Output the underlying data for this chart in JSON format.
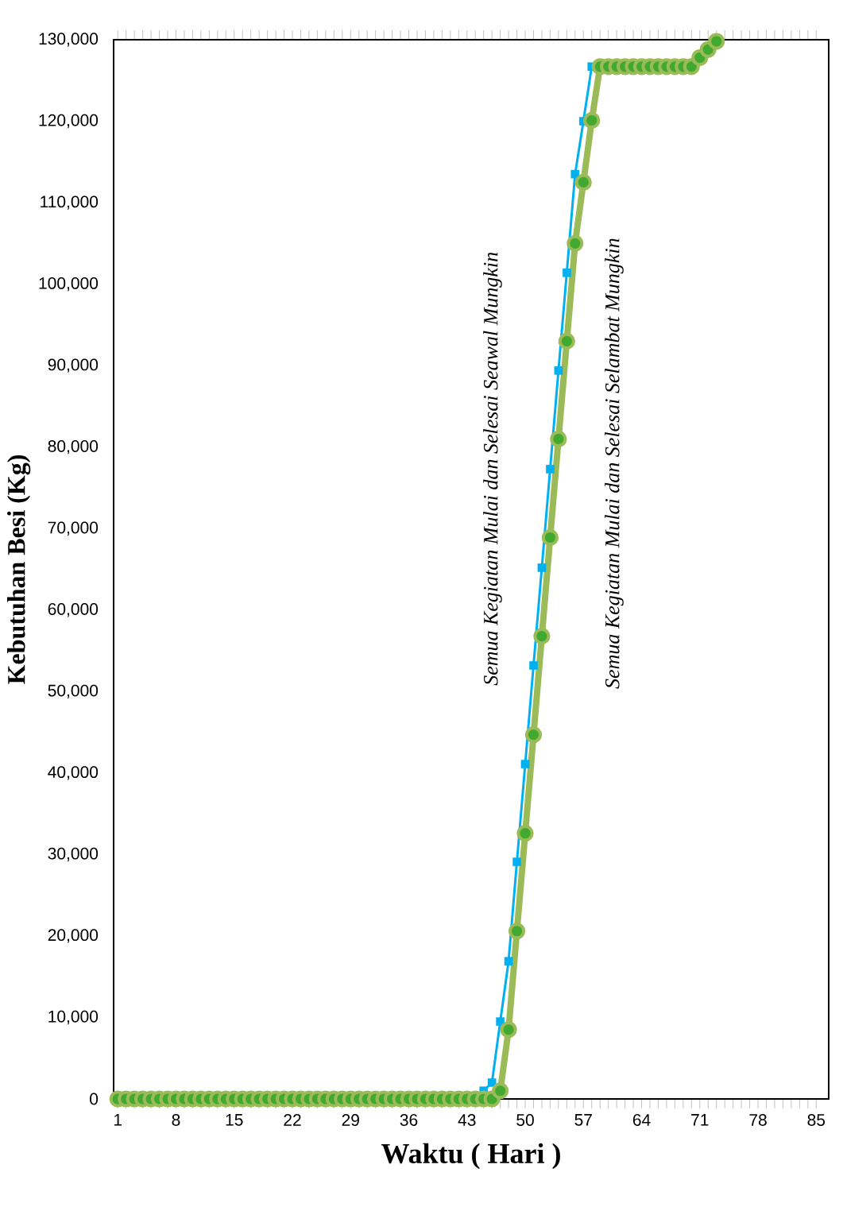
{
  "chart_data": {
    "type": "line",
    "xlabel": "Waktu ( Hari )",
    "ylabel": "Kebutuhan Besi (Kg)",
    "x": [
      1,
      2,
      3,
      4,
      5,
      6,
      7,
      8,
      9,
      10,
      11,
      12,
      13,
      14,
      15,
      16,
      17,
      18,
      19,
      20,
      21,
      22,
      23,
      24,
      25,
      26,
      27,
      28,
      29,
      30,
      31,
      32,
      33,
      34,
      35,
      36,
      37,
      38,
      39,
      40,
      41,
      42,
      43,
      44,
      45,
      46,
      47,
      48,
      49,
      50,
      51,
      52,
      53,
      54,
      55,
      56,
      57,
      58,
      59,
      60,
      61,
      62,
      63,
      64,
      65,
      66,
      67,
      68,
      69,
      70,
      71,
      72,
      73
    ],
    "series": [
      {
        "color": "#00b0f0",
        "marker": "square",
        "values": [
          null,
          null,
          null,
          null,
          null,
          null,
          null,
          null,
          null,
          null,
          null,
          null,
          null,
          null,
          null,
          null,
          null,
          null,
          null,
          null,
          null,
          null,
          null,
          null,
          null,
          null,
          null,
          null,
          null,
          null,
          null,
          null,
          null,
          null,
          null,
          null,
          null,
          null,
          null,
          null,
          null,
          null,
          null,
          null,
          1000,
          2000,
          9500,
          16900,
          29100,
          41100,
          53200,
          65200,
          77300,
          89400,
          101400,
          113500,
          120000,
          126700,
          null,
          null,
          null,
          null,
          null,
          null,
          null,
          null,
          null,
          null,
          null,
          null,
          null,
          null,
          null
        ]
      },
      {
        "color": "#9bbb59",
        "marker": "circle",
        "values": [
          0,
          0,
          0,
          0,
          0,
          0,
          0,
          0,
          0,
          0,
          0,
          0,
          0,
          0,
          0,
          0,
          0,
          0,
          0,
          0,
          0,
          0,
          0,
          0,
          0,
          0,
          0,
          0,
          0,
          0,
          0,
          0,
          0,
          0,
          0,
          0,
          0,
          0,
          0,
          0,
          0,
          0,
          0,
          0,
          0,
          0,
          1000,
          8500,
          20600,
          32600,
          44700,
          56800,
          68900,
          81000,
          93000,
          105000,
          112500,
          120100,
          126700,
          126700,
          126700,
          126700,
          126700,
          126700,
          126700,
          126700,
          126700,
          126700,
          126700,
          126700,
          127800,
          128800,
          129800
        ]
      }
    ],
    "xlim": [
      0.5,
      86.5
    ],
    "xticks": [
      1,
      8,
      15,
      22,
      29,
      36,
      43,
      50,
      57,
      64,
      71,
      78,
      85
    ],
    "ylim": [
      0,
      130000
    ],
    "yticks": [
      {
        "value": 0,
        "label": "0"
      },
      {
        "value": 10000,
        "label": "10,000"
      },
      {
        "value": 20000,
        "label": "20,000"
      },
      {
        "value": 30000,
        "label": "30,000"
      },
      {
        "value": 40000,
        "label": "40,000"
      },
      {
        "value": 50000,
        "label": "50,000"
      },
      {
        "value": 60000,
        "label": "60,000"
      },
      {
        "value": 70000,
        "label": "70,000"
      },
      {
        "value": 80000,
        "label": "80,000"
      },
      {
        "value": 90000,
        "label": "90,000"
      },
      {
        "value": 100000,
        "label": "100,000"
      },
      {
        "value": 110000,
        "label": "110,000"
      },
      {
        "value": 120000,
        "label": "120,000"
      },
      {
        "value": 130000,
        "label": "130,000"
      }
    ],
    "grid": false,
    "annotations": [
      "Semua Kegiatan  Mulai dan Selesai Seawal Mungkin",
      "Semua Kegiatan  Mulai dan Selesai Selambat Mungkin"
    ]
  }
}
